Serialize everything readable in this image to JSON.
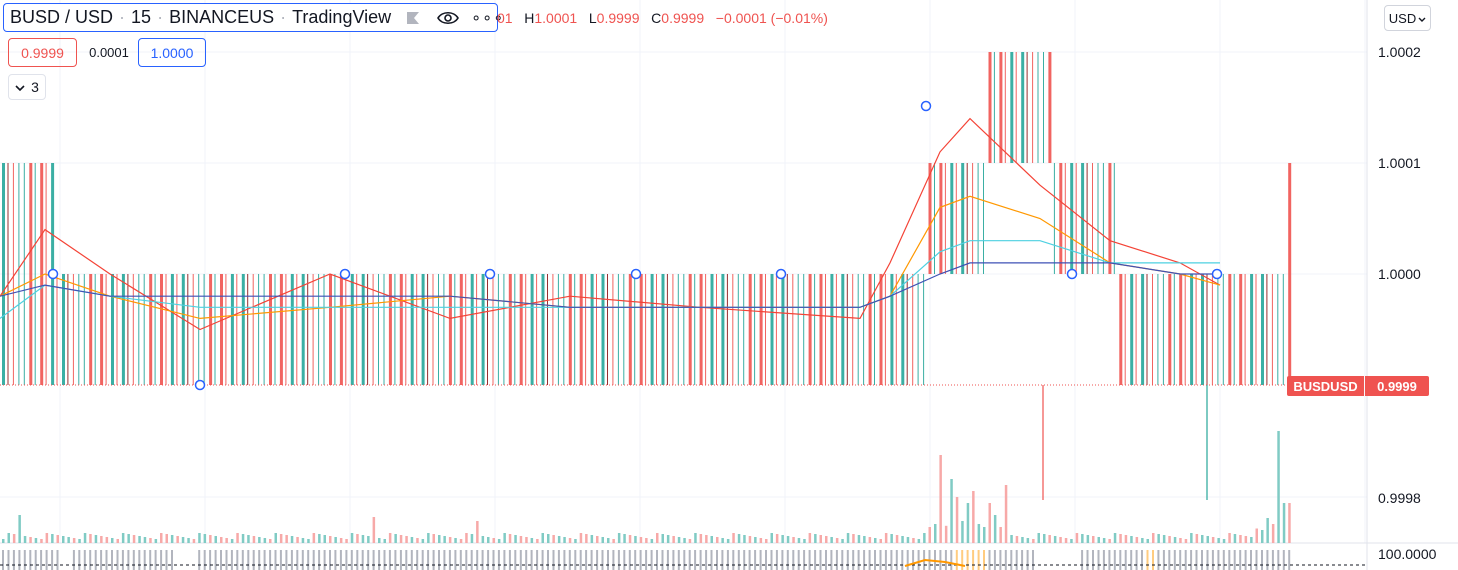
{
  "legend": {
    "symbol": "BUSD / USD",
    "interval": "15",
    "exchange": "BINANCEUS",
    "provider": "TradingView",
    "icons": [
      "flag-icon",
      "eye-icon",
      "more-icon"
    ],
    "more_glyph": "∘∘∘"
  },
  "ohlc": {
    "open_fragment": "01",
    "high_label": "H",
    "high": "1.0001",
    "low_label": "L",
    "low": "0.9999",
    "close_label": "C",
    "close": "0.9999",
    "change": "−0.0001 (−0.01%)"
  },
  "trade": {
    "sell": "0.9999",
    "spread": "0.0001",
    "buy": "1.0000"
  },
  "indicators_toggle": {
    "count": "3"
  },
  "currency": {
    "label": "USD"
  },
  "price_axis": {
    "labels": [
      "1.0002",
      "1.0001",
      "1.0000",
      "0.9998",
      "100.0000"
    ]
  },
  "last_price_tag": {
    "symbol": "BUSDUSD",
    "value": "0.9999"
  },
  "colors": {
    "up": "#26a69a",
    "down": "#ef5350",
    "accent": "#2962ff",
    "ma_red": "#f44336",
    "ma_orange": "#ff9800",
    "ma_cyan": "#4dd0e1",
    "ma_blue": "#3f51b5"
  },
  "chart_data": {
    "type": "bar",
    "title": "BUSD / USD · 15 · BINANCEUS",
    "y_axis_ticks": [
      1.0002,
      1.0001,
      1.0,
      0.9998
    ],
    "price_levels": [
      0.9999,
      1.0,
      1.0001,
      1.0002
    ],
    "price_segments": [
      {
        "bars": 10,
        "low": 0.9999,
        "high": 1.0001
      },
      {
        "bars": 160,
        "low": 0.9999,
        "high": 1.0
      },
      {
        "bars": 11,
        "low": 1.0,
        "high": 1.0001
      },
      {
        "bars": 12,
        "low": 1.0001,
        "high": 1.0002
      },
      {
        "bars": 12,
        "low": 1.0,
        "high": 1.0001
      },
      {
        "bars": 31,
        "low": 0.9999,
        "high": 1.0
      },
      {
        "bars": 1,
        "low": 0.9999,
        "high": 1.0001
      }
    ],
    "moving_averages": [
      {
        "color": "red",
        "values": [
          0.99998,
          1.00004,
          1.0,
          0.99995,
          1.0,
          0.99996,
          0.99998,
          0.99997,
          0.99996,
          1.00001,
          1.00011,
          1.00014,
          1.00008,
          1.00003,
          1.00001,
          0.99999
        ]
      },
      {
        "color": "orange",
        "values": [
          0.99998,
          1.0,
          0.99998,
          0.99996,
          0.99997,
          0.99998,
          0.99997,
          0.99997,
          0.99997,
          0.99998,
          1.00006,
          1.00007,
          1.00005,
          1.00001,
          1.0,
          0.99999
        ]
      },
      {
        "color": "cyan",
        "values": [
          0.99996,
          0.99999,
          0.99998,
          0.99997,
          0.99997,
          0.99997,
          0.99997,
          0.99997,
          0.99997,
          0.99998,
          1.00002,
          1.00003,
          1.00003,
          1.00001,
          1.00001,
          1.00001
        ]
      },
      {
        "color": "blue",
        "values": [
          0.99998,
          0.99999,
          0.99998,
          0.99998,
          0.99998,
          0.99998,
          0.99997,
          0.99997,
          0.99997,
          0.99998,
          1.0,
          1.00001,
          1.00001,
          1.00001,
          1.0,
          1.0
        ]
      }
    ],
    "volume_levels": [
      0.1,
      0.15,
      0.1,
      0.12,
      0.9,
      0.6,
      0.2,
      0.5,
      0.3,
      0.15,
      0.1,
      0.5,
      0.3,
      0.1,
      0.8,
      1.0,
      0.2
    ]
  }
}
